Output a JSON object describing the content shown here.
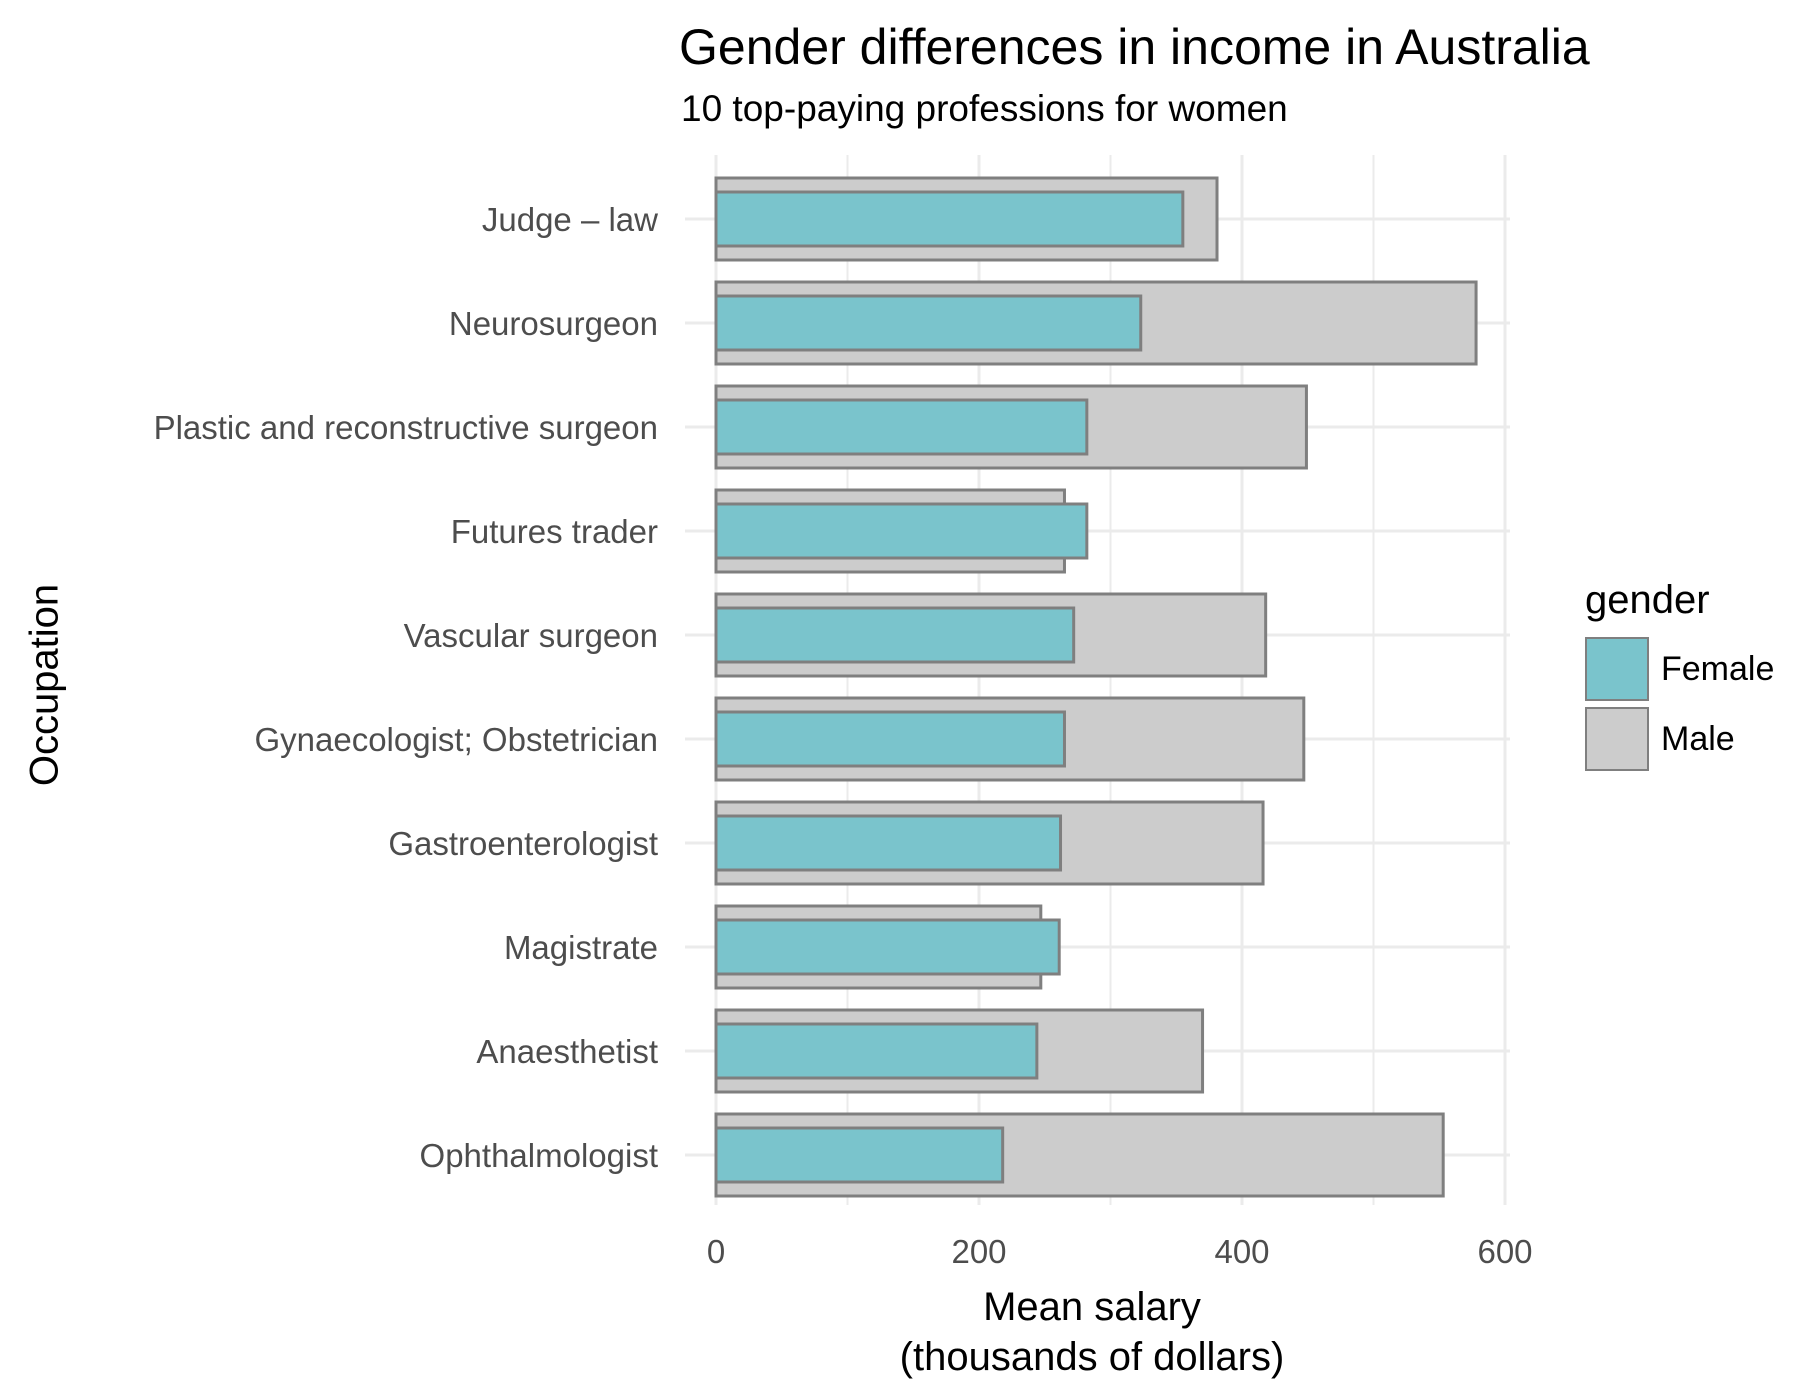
{
  "chart_data": {
    "type": "bar",
    "orientation": "horizontal",
    "title": "Gender differences in income in Australia",
    "subtitle": "10 top-paying professions for women",
    "xlabel_lines": [
      "Mean salary",
      "(thousands of dollars)"
    ],
    "ylabel": "Occupation",
    "xlim": [
      0,
      600
    ],
    "xticks": [
      0,
      200,
      400,
      600
    ],
    "grid": true,
    "legend_position": "right",
    "legend_title": "gender",
    "categories": [
      "Judge – law",
      "Neurosurgeon",
      "Plastic and reconstructive surgeon",
      "Futures trader",
      "Vascular surgeon",
      "Gynaecologist; Obstetrician",
      "Gastroenterologist",
      "Magistrate",
      "Anaesthetist",
      "Ophthalmologist"
    ],
    "series": [
      {
        "name": "Female",
        "color": "#7ac4cc",
        "values": [
          355,
          323,
          282,
          282,
          272,
          265,
          262,
          261,
          244,
          218
        ]
      },
      {
        "name": "Male",
        "color": "#cccccc",
        "values": [
          381,
          578,
          449,
          265,
          418,
          447,
          416,
          247,
          370,
          553
        ]
      }
    ],
    "bar_outline_color": "#7f7f7f",
    "grid_color": "#ebebeb"
  }
}
